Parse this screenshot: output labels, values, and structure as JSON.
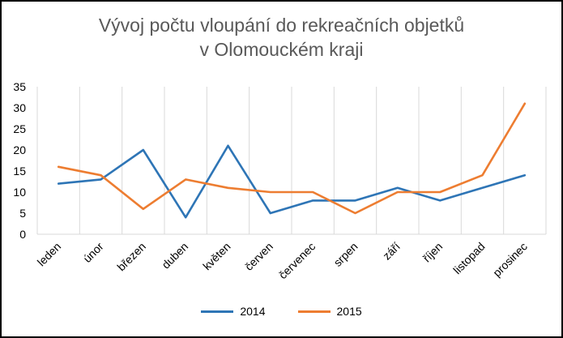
{
  "chart_data": {
    "type": "line",
    "title_lines": [
      "Vývoj počtu vloupání do rekreačních objetků",
      "v Olomouckém kraji"
    ],
    "categories": [
      "leden",
      "únor",
      "březen",
      "duben",
      "květen",
      "červen",
      "červenec",
      "srpen",
      "září",
      "říjen",
      "listopad",
      "prosinec"
    ],
    "ylim": [
      0,
      35
    ],
    "yticks": [
      "0",
      "5",
      "10",
      "15",
      "20",
      "25",
      "30",
      "35"
    ],
    "grid": "vertical",
    "legend_position": "bottom",
    "series": [
      {
        "name": "2014",
        "color": "#2E75B6",
        "values": [
          12,
          13,
          20,
          4,
          21,
          5,
          8,
          8,
          11,
          8,
          11,
          14
        ]
      },
      {
        "name": "2015",
        "color": "#ED7D31",
        "values": [
          16,
          14,
          6,
          13,
          11,
          10,
          10,
          5,
          10,
          10,
          14,
          31
        ]
      }
    ]
  }
}
